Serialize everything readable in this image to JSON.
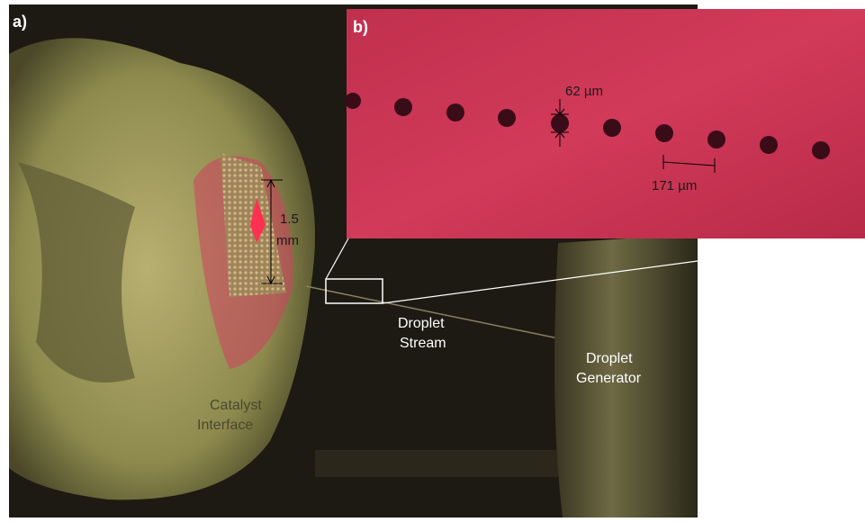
{
  "panel_a": {
    "label": "a)",
    "scale_label": [
      "1.5",
      "mm"
    ],
    "stream_label": [
      "Droplet",
      "Stream"
    ],
    "generator_label": [
      "Droplet",
      "Generator"
    ],
    "catalyst_label": [
      "Catalyst",
      "Interface"
    ]
  },
  "panel_b": {
    "label": "b)",
    "diameter_label": "62 µm",
    "spacing_label": "171 µm"
  }
}
